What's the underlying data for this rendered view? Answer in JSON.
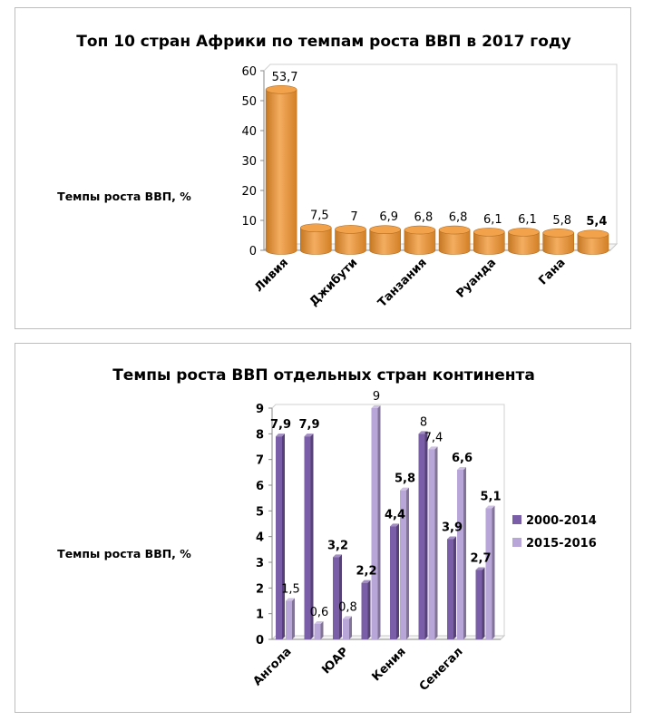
{
  "chart_data": [
    {
      "type": "bar",
      "title": "Топ 10 стран Африки по темпам роста ВВП в 2017 году",
      "ylabel": "Темпы роста ВВП, %",
      "xlabel": "",
      "ylim": [
        0,
        60
      ],
      "yticks": [
        0,
        10,
        20,
        30,
        40,
        50,
        60
      ],
      "categories": [
        "Ливия",
        "",
        "Джибути",
        "",
        "Танзания",
        "",
        "Руанда",
        "",
        "Гана",
        ""
      ],
      "values": [
        53.7,
        7.5,
        7,
        6.9,
        6.8,
        6.8,
        6.1,
        6.1,
        5.8,
        5.4
      ],
      "data_labels": [
        "53,7",
        "7,5",
        "7",
        "6,9",
        "6,8",
        "6,8",
        "6,1",
        "6,1",
        "5,8",
        "5,4"
      ],
      "bar_color": "#f0922b",
      "grid": false,
      "legend": "none"
    },
    {
      "type": "bar",
      "title": "Темпы роста ВВП отдельных стран континента",
      "ylabel": "Темпы роста ВВП, %",
      "xlabel": "",
      "ylim": [
        0,
        9
      ],
      "yticks": [
        0,
        1,
        2,
        3,
        4,
        5,
        6,
        7,
        8,
        9
      ],
      "categories": [
        "Ангола",
        "",
        "ЮАР",
        "",
        "Кения",
        "",
        "Сенегал",
        ""
      ],
      "series": [
        {
          "name": "2000-2014",
          "color": "#7b5ea8",
          "values": [
            7.9,
            7.9,
            3.2,
            2.2,
            4.4,
            8,
            3.9,
            2.7
          ],
          "data_labels": [
            "7,9",
            "7,9",
            "3,2",
            "2,2",
            "4,4",
            "8",
            "3,9",
            "2,7"
          ]
        },
        {
          "name": "2015-2016",
          "color": "#b9a6d8",
          "values": [
            1.5,
            0.6,
            0.8,
            9,
            5.8,
            7.4,
            6.6,
            5.1
          ],
          "data_labels": [
            "1,5",
            "0,6",
            "0,8",
            "9",
            "5,8",
            "7,4",
            "6,6",
            "5,1"
          ]
        }
      ],
      "grid": false,
      "legend": "right"
    }
  ]
}
